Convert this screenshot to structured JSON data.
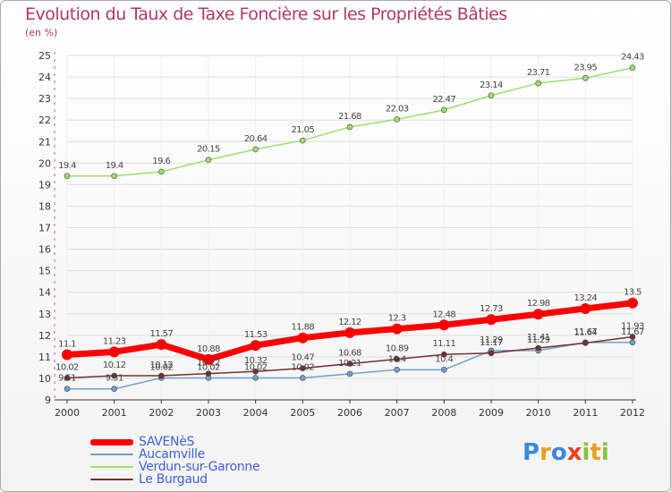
{
  "chart_data": {
    "type": "line",
    "title": "Evolution du Taux de Taxe Foncière sur les Propriétés Bâties",
    "ylabel": "(en %)",
    "x": [
      "2000",
      "2001",
      "2002",
      "2003",
      "2004",
      "2005",
      "2006",
      "2007",
      "2008",
      "2009",
      "2010",
      "2011",
      "2012"
    ],
    "ylim": [
      9,
      25
    ],
    "yticks": [
      9,
      10,
      11,
      12,
      13,
      14,
      15,
      16,
      17,
      18,
      19,
      20,
      21,
      22,
      23,
      24,
      25
    ],
    "series": [
      {
        "name": "SAVENèS",
        "color": "#ff0000",
        "values": [
          11.1,
          11.23,
          11.57,
          10.88,
          11.53,
          11.88,
          12.12,
          12.3,
          12.48,
          12.73,
          12.98,
          13.24,
          13.5
        ],
        "labels": [
          "11.1",
          "11.23",
          "11.57",
          "10.88",
          "11.53",
          "11.88",
          "12.12",
          "12.3",
          "12.48",
          "12.73",
          "12.98",
          "13.24",
          "13.5"
        ]
      },
      {
        "name": "Aucamville",
        "color": "#6fa0cc",
        "values": [
          9.51,
          9.51,
          10.02,
          10.02,
          10.02,
          10.02,
          10.21,
          10.4,
          10.4,
          11.29,
          11.29,
          11.67,
          11.67
        ],
        "labels": [
          "9.51",
          "9.51",
          "10.02",
          "10.02",
          "10.02",
          "10.02",
          "10.21",
          "10.4",
          "10.4",
          "11.29",
          "11.29",
          "11.67",
          "11.67"
        ]
      },
      {
        "name": "Verdun-sur-Garonne",
        "color": "#9dde6f",
        "values": [
          19.4,
          19.4,
          19.6,
          20.15,
          20.64,
          21.05,
          21.68,
          22.03,
          22.47,
          23.14,
          23.71,
          23.95,
          24.43
        ],
        "labels": [
          "19.4",
          "19.4",
          "19.6",
          "20.15",
          "20.64",
          "21.05",
          "21.68",
          "22.03",
          "22.47",
          "23.14",
          "23.71",
          "23.95",
          "24.43"
        ]
      },
      {
        "name": "Le Burgaud",
        "color": "#7a2d2d",
        "values": [
          10.02,
          10.12,
          10.12,
          10.22,
          10.32,
          10.47,
          10.68,
          10.89,
          11.11,
          11.17,
          11.41,
          11.64,
          11.93
        ],
        "labels": [
          "10.02",
          "10.12",
          "10.12",
          "10.22",
          "10.32",
          "10.47",
          "10.68",
          "10.89",
          "11.11",
          "11.17",
          "11.41",
          "11.64",
          "11.93"
        ]
      }
    ]
  },
  "legend": {
    "items": [
      {
        "label": "SAVENèS"
      },
      {
        "label": "Aucamville"
      },
      {
        "label": "Verdun-sur-Garonne"
      },
      {
        "label": "Le Burgaud"
      }
    ]
  },
  "logo": {
    "letters": [
      {
        "ch": "P",
        "color": "#3a8ad8"
      },
      {
        "ch": "r",
        "color": "#e8a020"
      },
      {
        "ch": "o",
        "color": "#3a8ad8"
      },
      {
        "ch": "x",
        "color": "#e84020"
      },
      {
        "ch": "i",
        "color": "#8ac040"
      },
      {
        "ch": "t",
        "color": "#e8a020"
      },
      {
        "ch": "i",
        "color": "#8ac040"
      }
    ]
  }
}
